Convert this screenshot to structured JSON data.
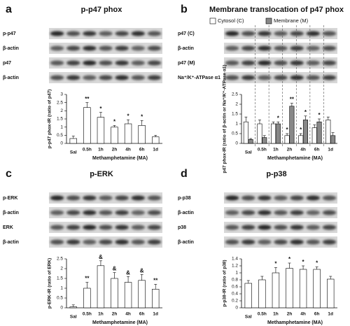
{
  "chart_data": [
    {
      "type": "bar",
      "panel": "a",
      "title": "p-p47 phox",
      "blot_labels": [
        "p-p47",
        "β-actin",
        "p47",
        "β-actin"
      ],
      "ylabel": "p-p47 phox-IR (ratio of p47)",
      "xlabel": "Methamphetamine (MA)",
      "categories": [
        "Sal",
        "0.5h",
        "1h",
        "2h",
        "4h",
        "6h",
        "1d"
      ],
      "series": [
        {
          "color": "#ffffff",
          "values": [
            0.3,
            2.2,
            1.6,
            1.0,
            1.2,
            1.1,
            0.4
          ],
          "errors": [
            0.15,
            0.3,
            0.3,
            0.1,
            0.25,
            0.3,
            0.1
          ],
          "sig": [
            null,
            "**",
            "*",
            "*",
            "*",
            "*",
            null
          ]
        }
      ],
      "ylim": [
        0,
        3
      ],
      "yticks": [
        0,
        0.5,
        1,
        1.5,
        2,
        2.5,
        3
      ]
    },
    {
      "type": "bar",
      "panel": "b",
      "title": "Membrane translocation of p47 phox",
      "blot_labels": [
        "p47 (C)",
        "β-actin",
        "p47 (M)",
        "Na⁺/K⁺-ATPase α1"
      ],
      "ylabel": "p47 phox-IR (ratio of β-actin or Na⁺/K⁺-ATPase α1)",
      "xlabel": "Methamphetamine (MA)",
      "categories": [
        "Sal",
        "0.5h",
        "1h",
        "2h",
        "4h",
        "6h",
        "1d"
      ],
      "series": [
        {
          "name": "Cytosol (C)",
          "color": "#ffffff",
          "values": [
            1.1,
            1.0,
            1.0,
            0.4,
            0.4,
            0.8,
            1.2
          ],
          "errors": [
            0.25,
            0.2,
            0.1,
            0.1,
            0.1,
            0.15,
            0.15
          ],
          "sig": [
            null,
            null,
            null,
            "*",
            "*",
            null,
            null
          ]
        },
        {
          "name": "Membrane (M)",
          "color": "#888888",
          "values": [
            0.2,
            0.3,
            1.0,
            1.9,
            1.2,
            1.1,
            0.4
          ],
          "errors": [
            0.05,
            0.1,
            0.1,
            0.15,
            0.2,
            0.15,
            0.15
          ],
          "sig": [
            null,
            null,
            "*",
            "**",
            "*",
            "*",
            null
          ]
        }
      ],
      "ylim": [
        0,
        2.5
      ],
      "yticks": [
        0,
        0.5,
        1,
        1.5,
        2,
        2.5
      ],
      "legend": "top"
    },
    {
      "type": "bar",
      "panel": "c",
      "title": "p-ERK",
      "blot_labels": [
        "p-ERK",
        "β-actin",
        "ERK",
        "β-actin"
      ],
      "ylabel": "p-ERK-IR (ratio of ERK)",
      "xlabel": "Methamphetamine (MA)",
      "categories": [
        "Sal",
        "0.5h",
        "1h",
        "2h",
        "4h",
        "6h",
        "1d"
      ],
      "series": [
        {
          "color": "#ffffff",
          "values": [
            0.05,
            1.0,
            2.15,
            1.5,
            1.3,
            1.4,
            0.95
          ],
          "errors": [
            0.1,
            0.3,
            0.25,
            0.3,
            0.3,
            0.3,
            0.25
          ],
          "sig": [
            null,
            "**",
            "&",
            "&",
            "&",
            "&",
            "**"
          ]
        }
      ],
      "ylim": [
        0,
        2.5
      ],
      "yticks": [
        0,
        0.5,
        1,
        1.5,
        2,
        2.5
      ]
    },
    {
      "type": "bar",
      "panel": "d",
      "title": "p-p38",
      "blot_labels": [
        "p-p38",
        "β-actin",
        "p38",
        "β-actin"
      ],
      "ylabel": "p-p38-IR (ratio of p38)",
      "xlabel": "Methamphetamine (MA)",
      "categories": [
        "Sal",
        "0.5h",
        "1h",
        "2h",
        "4h",
        "6h",
        "1d"
      ],
      "series": [
        {
          "color": "#ffffff",
          "values": [
            0.7,
            0.8,
            1.0,
            1.13,
            1.1,
            1.1,
            0.82
          ],
          "errors": [
            0.08,
            0.1,
            0.15,
            0.15,
            0.1,
            0.07,
            0.08
          ],
          "sig": [
            null,
            null,
            "*",
            "*",
            "*",
            "*",
            null
          ]
        }
      ],
      "ylim": [
        0,
        1.4
      ],
      "yticks": [
        0,
        0.2,
        0.4,
        0.6,
        0.8,
        1,
        1.2,
        1.4
      ]
    }
  ]
}
